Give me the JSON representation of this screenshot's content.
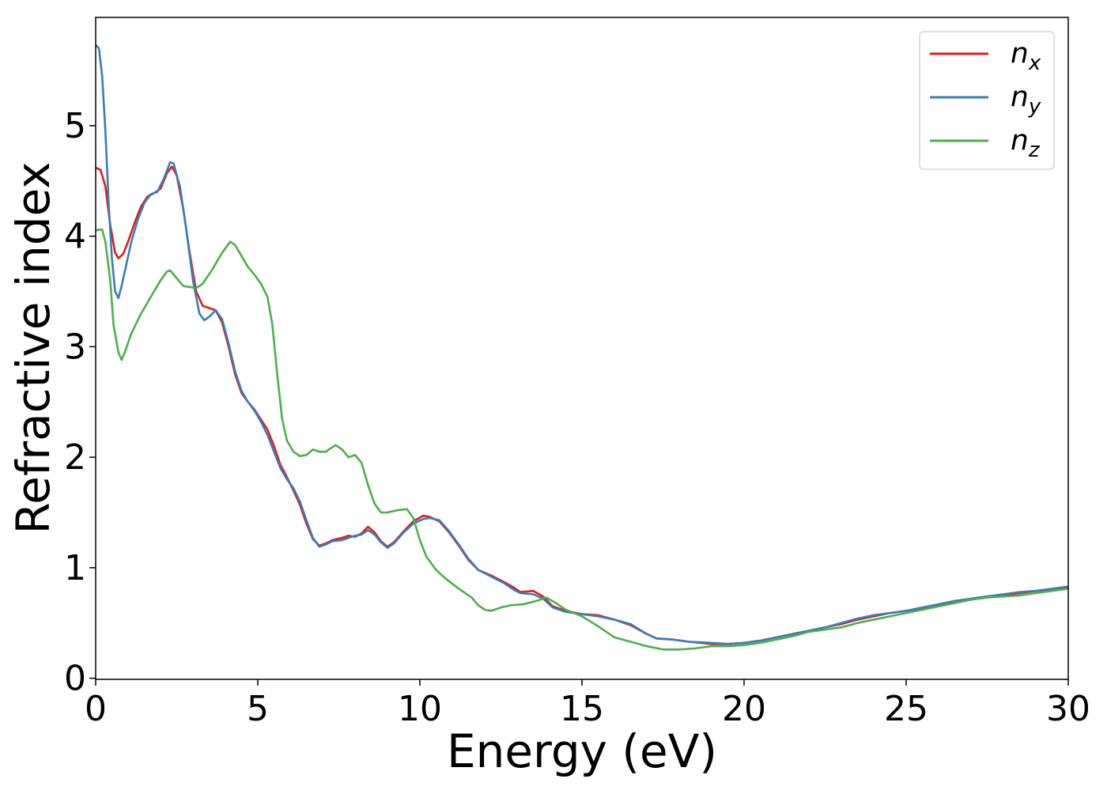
{
  "chart_data": {
    "type": "line",
    "title": "",
    "xlabel": "Energy (eV)",
    "ylabel": "Refractive index",
    "xlim": [
      0,
      30
    ],
    "ylim": [
      -0.01,
      5.98
    ],
    "x_ticks": [
      0,
      5,
      10,
      15,
      20,
      25,
      30
    ],
    "y_ticks": [
      0,
      1,
      2,
      3,
      4,
      5
    ],
    "grid": false,
    "legend_position": "top-right",
    "series": [
      {
        "name": "n_x",
        "legend_base": "n",
        "legend_sub": "x",
        "color": "#e41a1c",
        "points": [
          [
            0,
            4.62
          ],
          [
            0.15,
            4.6
          ],
          [
            0.3,
            4.45
          ],
          [
            0.45,
            4.1
          ],
          [
            0.6,
            3.85
          ],
          [
            0.7,
            3.8
          ],
          [
            0.85,
            3.84
          ],
          [
            1.0,
            3.95
          ],
          [
            1.2,
            4.12
          ],
          [
            1.4,
            4.27
          ],
          [
            1.6,
            4.36
          ],
          [
            1.8,
            4.39
          ],
          [
            2.0,
            4.43
          ],
          [
            2.2,
            4.57
          ],
          [
            2.35,
            4.63
          ],
          [
            2.5,
            4.55
          ],
          [
            2.7,
            4.25
          ],
          [
            2.9,
            3.85
          ],
          [
            3.1,
            3.5
          ],
          [
            3.3,
            3.37
          ],
          [
            3.5,
            3.35
          ],
          [
            3.7,
            3.33
          ],
          [
            3.9,
            3.22
          ],
          [
            4.1,
            3.0
          ],
          [
            4.3,
            2.75
          ],
          [
            4.5,
            2.58
          ],
          [
            4.7,
            2.5
          ],
          [
            4.9,
            2.43
          ],
          [
            5.1,
            2.34
          ],
          [
            5.3,
            2.25
          ],
          [
            5.5,
            2.1
          ],
          [
            5.7,
            1.93
          ],
          [
            5.9,
            1.82
          ],
          [
            6.1,
            1.7
          ],
          [
            6.3,
            1.57
          ],
          [
            6.5,
            1.4
          ],
          [
            6.7,
            1.26
          ],
          [
            6.9,
            1.2
          ],
          [
            7.1,
            1.22
          ],
          [
            7.3,
            1.25
          ],
          [
            7.6,
            1.27
          ],
          [
            7.8,
            1.29
          ],
          [
            8.0,
            1.28
          ],
          [
            8.2,
            1.31
          ],
          [
            8.4,
            1.37
          ],
          [
            8.6,
            1.32
          ],
          [
            8.8,
            1.24
          ],
          [
            9.0,
            1.19
          ],
          [
            9.2,
            1.23
          ],
          [
            9.5,
            1.33
          ],
          [
            9.8,
            1.42
          ],
          [
            10.1,
            1.47
          ],
          [
            10.3,
            1.46
          ],
          [
            10.6,
            1.42
          ],
          [
            10.9,
            1.32
          ],
          [
            11.2,
            1.2
          ],
          [
            11.5,
            1.07
          ],
          [
            11.8,
            0.98
          ],
          [
            12.2,
            0.93
          ],
          [
            12.6,
            0.87
          ],
          [
            12.9,
            0.82
          ],
          [
            13.1,
            0.78
          ],
          [
            13.5,
            0.79
          ],
          [
            13.8,
            0.74
          ],
          [
            14.1,
            0.65
          ],
          [
            14.5,
            0.61
          ],
          [
            15.0,
            0.58
          ],
          [
            15.5,
            0.57
          ],
          [
            16.0,
            0.53
          ],
          [
            16.5,
            0.48
          ],
          [
            17.0,
            0.4
          ],
          [
            17.3,
            0.36
          ],
          [
            17.8,
            0.35
          ],
          [
            18.3,
            0.33
          ],
          [
            19.0,
            0.31
          ],
          [
            19.5,
            0.31
          ],
          [
            20.0,
            0.32
          ],
          [
            20.5,
            0.34
          ],
          [
            21.0,
            0.37
          ],
          [
            21.5,
            0.4
          ],
          [
            22.0,
            0.43
          ],
          [
            22.5,
            0.46
          ],
          [
            23.0,
            0.49
          ],
          [
            23.5,
            0.53
          ],
          [
            24.0,
            0.56
          ],
          [
            24.5,
            0.59
          ],
          [
            25.0,
            0.61
          ],
          [
            25.5,
            0.63
          ],
          [
            26.0,
            0.66
          ],
          [
            26.5,
            0.69
          ],
          [
            27.0,
            0.72
          ],
          [
            27.5,
            0.74
          ],
          [
            28.0,
            0.75
          ],
          [
            28.5,
            0.77
          ],
          [
            29.0,
            0.79
          ],
          [
            29.5,
            0.8
          ],
          [
            30.0,
            0.82
          ]
        ]
      },
      {
        "name": "n_y",
        "legend_base": "n",
        "legend_sub": "y",
        "color": "#377eb8",
        "points": [
          [
            0,
            5.73
          ],
          [
            0.1,
            5.7
          ],
          [
            0.2,
            5.45
          ],
          [
            0.3,
            4.95
          ],
          [
            0.4,
            4.3
          ],
          [
            0.5,
            3.8
          ],
          [
            0.6,
            3.5
          ],
          [
            0.7,
            3.44
          ],
          [
            0.8,
            3.55
          ],
          [
            0.95,
            3.75
          ],
          [
            1.1,
            3.95
          ],
          [
            1.3,
            4.15
          ],
          [
            1.5,
            4.3
          ],
          [
            1.7,
            4.38
          ],
          [
            1.9,
            4.4
          ],
          [
            2.1,
            4.52
          ],
          [
            2.3,
            4.67
          ],
          [
            2.4,
            4.66
          ],
          [
            2.6,
            4.45
          ],
          [
            2.8,
            4.05
          ],
          [
            3.0,
            3.6
          ],
          [
            3.2,
            3.3
          ],
          [
            3.35,
            3.24
          ],
          [
            3.5,
            3.27
          ],
          [
            3.7,
            3.33
          ],
          [
            3.9,
            3.25
          ],
          [
            4.1,
            3.03
          ],
          [
            4.3,
            2.78
          ],
          [
            4.5,
            2.6
          ],
          [
            4.7,
            2.5
          ],
          [
            4.9,
            2.42
          ],
          [
            5.1,
            2.32
          ],
          [
            5.3,
            2.2
          ],
          [
            5.5,
            2.05
          ],
          [
            5.7,
            1.9
          ],
          [
            5.9,
            1.8
          ],
          [
            6.1,
            1.72
          ],
          [
            6.3,
            1.6
          ],
          [
            6.5,
            1.43
          ],
          [
            6.7,
            1.27
          ],
          [
            6.9,
            1.19
          ],
          [
            7.1,
            1.21
          ],
          [
            7.3,
            1.24
          ],
          [
            7.6,
            1.25
          ],
          [
            7.8,
            1.27
          ],
          [
            8.0,
            1.29
          ],
          [
            8.2,
            1.3
          ],
          [
            8.4,
            1.34
          ],
          [
            8.6,
            1.3
          ],
          [
            8.8,
            1.23
          ],
          [
            9.0,
            1.18
          ],
          [
            9.2,
            1.22
          ],
          [
            9.5,
            1.32
          ],
          [
            9.8,
            1.4
          ],
          [
            10.1,
            1.44
          ],
          [
            10.3,
            1.45
          ],
          [
            10.6,
            1.43
          ],
          [
            10.9,
            1.33
          ],
          [
            11.2,
            1.21
          ],
          [
            11.5,
            1.08
          ],
          [
            11.8,
            0.98
          ],
          [
            12.2,
            0.92
          ],
          [
            12.6,
            0.86
          ],
          [
            12.9,
            0.8
          ],
          [
            13.1,
            0.77
          ],
          [
            13.5,
            0.76
          ],
          [
            13.8,
            0.72
          ],
          [
            14.1,
            0.64
          ],
          [
            14.5,
            0.6
          ],
          [
            15.0,
            0.58
          ],
          [
            15.5,
            0.56
          ],
          [
            16.0,
            0.53
          ],
          [
            16.5,
            0.49
          ],
          [
            17.0,
            0.4
          ],
          [
            17.3,
            0.36
          ],
          [
            17.8,
            0.35
          ],
          [
            18.3,
            0.33
          ],
          [
            19.0,
            0.32
          ],
          [
            19.5,
            0.31
          ],
          [
            20.0,
            0.32
          ],
          [
            20.5,
            0.34
          ],
          [
            21.0,
            0.37
          ],
          [
            21.5,
            0.4
          ],
          [
            22.0,
            0.43
          ],
          [
            22.5,
            0.46
          ],
          [
            23.0,
            0.5
          ],
          [
            23.5,
            0.54
          ],
          [
            24.0,
            0.57
          ],
          [
            24.5,
            0.59
          ],
          [
            25.0,
            0.61
          ],
          [
            25.5,
            0.64
          ],
          [
            26.0,
            0.67
          ],
          [
            26.5,
            0.7
          ],
          [
            27.0,
            0.72
          ],
          [
            27.5,
            0.74
          ],
          [
            28.0,
            0.76
          ],
          [
            28.5,
            0.78
          ],
          [
            29.0,
            0.79
          ],
          [
            29.5,
            0.81
          ],
          [
            30.0,
            0.83
          ]
        ]
      },
      {
        "name": "n_z",
        "legend_base": "n",
        "legend_sub": "z",
        "color": "#4daf4a",
        "points": [
          [
            0,
            4.05
          ],
          [
            0.1,
            4.06
          ],
          [
            0.2,
            4.06
          ],
          [
            0.3,
            3.95
          ],
          [
            0.45,
            3.6
          ],
          [
            0.55,
            3.2
          ],
          [
            0.7,
            2.95
          ],
          [
            0.8,
            2.88
          ],
          [
            0.9,
            2.95
          ],
          [
            1.1,
            3.12
          ],
          [
            1.4,
            3.3
          ],
          [
            1.7,
            3.45
          ],
          [
            2.0,
            3.6
          ],
          [
            2.2,
            3.68
          ],
          [
            2.3,
            3.69
          ],
          [
            2.5,
            3.62
          ],
          [
            2.7,
            3.55
          ],
          [
            2.9,
            3.54
          ],
          [
            3.1,
            3.53
          ],
          [
            3.3,
            3.57
          ],
          [
            3.6,
            3.7
          ],
          [
            3.9,
            3.85
          ],
          [
            4.15,
            3.95
          ],
          [
            4.3,
            3.92
          ],
          [
            4.5,
            3.82
          ],
          [
            4.7,
            3.72
          ],
          [
            4.9,
            3.65
          ],
          [
            5.1,
            3.57
          ],
          [
            5.3,
            3.45
          ],
          [
            5.45,
            3.2
          ],
          [
            5.6,
            2.75
          ],
          [
            5.75,
            2.35
          ],
          [
            5.9,
            2.15
          ],
          [
            6.1,
            2.05
          ],
          [
            6.3,
            2.01
          ],
          [
            6.5,
            2.02
          ],
          [
            6.7,
            2.07
          ],
          [
            6.9,
            2.05
          ],
          [
            7.1,
            2.05
          ],
          [
            7.2,
            2.07
          ],
          [
            7.4,
            2.11
          ],
          [
            7.6,
            2.07
          ],
          [
            7.8,
            2.0
          ],
          [
            8.0,
            2.02
          ],
          [
            8.2,
            1.95
          ],
          [
            8.4,
            1.75
          ],
          [
            8.6,
            1.58
          ],
          [
            8.8,
            1.5
          ],
          [
            9.0,
            1.5
          ],
          [
            9.3,
            1.52
          ],
          [
            9.6,
            1.53
          ],
          [
            9.8,
            1.45
          ],
          [
            10.0,
            1.25
          ],
          [
            10.2,
            1.1
          ],
          [
            10.5,
            0.98
          ],
          [
            10.8,
            0.9
          ],
          [
            11.2,
            0.81
          ],
          [
            11.6,
            0.73
          ],
          [
            11.8,
            0.66
          ],
          [
            12.0,
            0.62
          ],
          [
            12.2,
            0.61
          ],
          [
            12.5,
            0.64
          ],
          [
            12.8,
            0.66
          ],
          [
            13.2,
            0.67
          ],
          [
            13.6,
            0.7
          ],
          [
            13.9,
            0.73
          ],
          [
            14.2,
            0.68
          ],
          [
            14.5,
            0.62
          ],
          [
            15.0,
            0.56
          ],
          [
            15.5,
            0.47
          ],
          [
            16.0,
            0.37
          ],
          [
            16.5,
            0.33
          ],
          [
            17.0,
            0.29
          ],
          [
            17.5,
            0.26
          ],
          [
            18.0,
            0.26
          ],
          [
            18.5,
            0.27
          ],
          [
            19.0,
            0.29
          ],
          [
            19.5,
            0.29
          ],
          [
            20.0,
            0.3
          ],
          [
            20.5,
            0.32
          ],
          [
            21.0,
            0.35
          ],
          [
            21.5,
            0.38
          ],
          [
            22.0,
            0.42
          ],
          [
            22.5,
            0.44
          ],
          [
            23.0,
            0.46
          ],
          [
            23.5,
            0.5
          ],
          [
            24.0,
            0.53
          ],
          [
            24.5,
            0.56
          ],
          [
            25.0,
            0.59
          ],
          [
            25.5,
            0.62
          ],
          [
            26.0,
            0.65
          ],
          [
            26.5,
            0.68
          ],
          [
            27.0,
            0.71
          ],
          [
            27.5,
            0.73
          ],
          [
            28.0,
            0.74
          ],
          [
            28.5,
            0.75
          ],
          [
            29.0,
            0.77
          ],
          [
            29.5,
            0.79
          ],
          [
            30.0,
            0.81
          ]
        ]
      }
    ]
  }
}
